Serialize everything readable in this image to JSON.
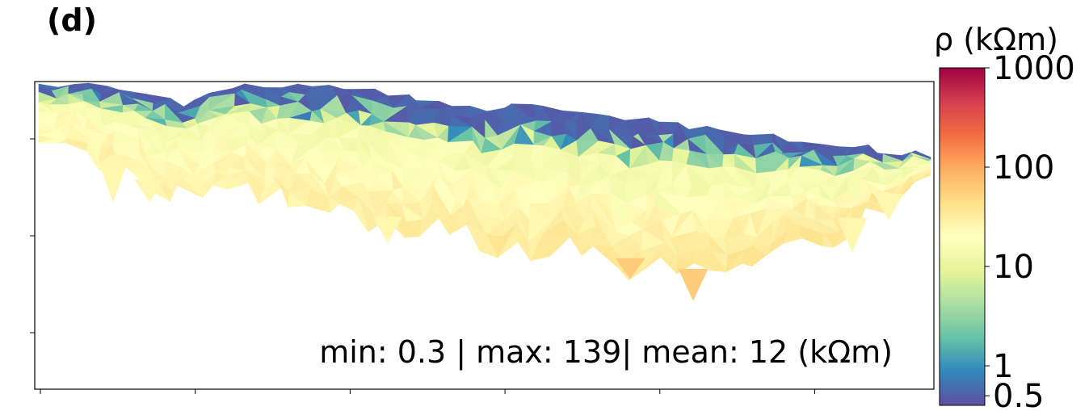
{
  "panel_label": "(d)",
  "chart_data": {
    "type": "heatmap",
    "description_kind": "resistivity section",
    "colorbar": {
      "title": "ρ (kΩm)",
      "scale": "log",
      "range": [
        0.4,
        1000
      ],
      "ticks": [
        {
          "value": 1000,
          "label": "1000"
        },
        {
          "value": 100,
          "label": "100"
        },
        {
          "value": 10,
          "label": "10"
        },
        {
          "value": 1,
          "label": "1"
        },
        {
          "value": 0.5,
          "label": "0.5"
        }
      ]
    },
    "stats_text": "min: 0.3 | max: 139| mean: 12 (kΩm)",
    "stats": {
      "min": 0.3,
      "max": 139,
      "mean": 12
    },
    "x_ticks_count": 7,
    "y_ticks_count": 3,
    "grid": false
  },
  "colors": {
    "cmap": [
      "#5e4fa2",
      "#3288bd",
      "#66c2a5",
      "#abdda4",
      "#e6f598",
      "#ffffbf",
      "#fee08b",
      "#fdae61",
      "#f46d43",
      "#d53e4f",
      "#9e0142"
    ],
    "axis": "#000000"
  }
}
